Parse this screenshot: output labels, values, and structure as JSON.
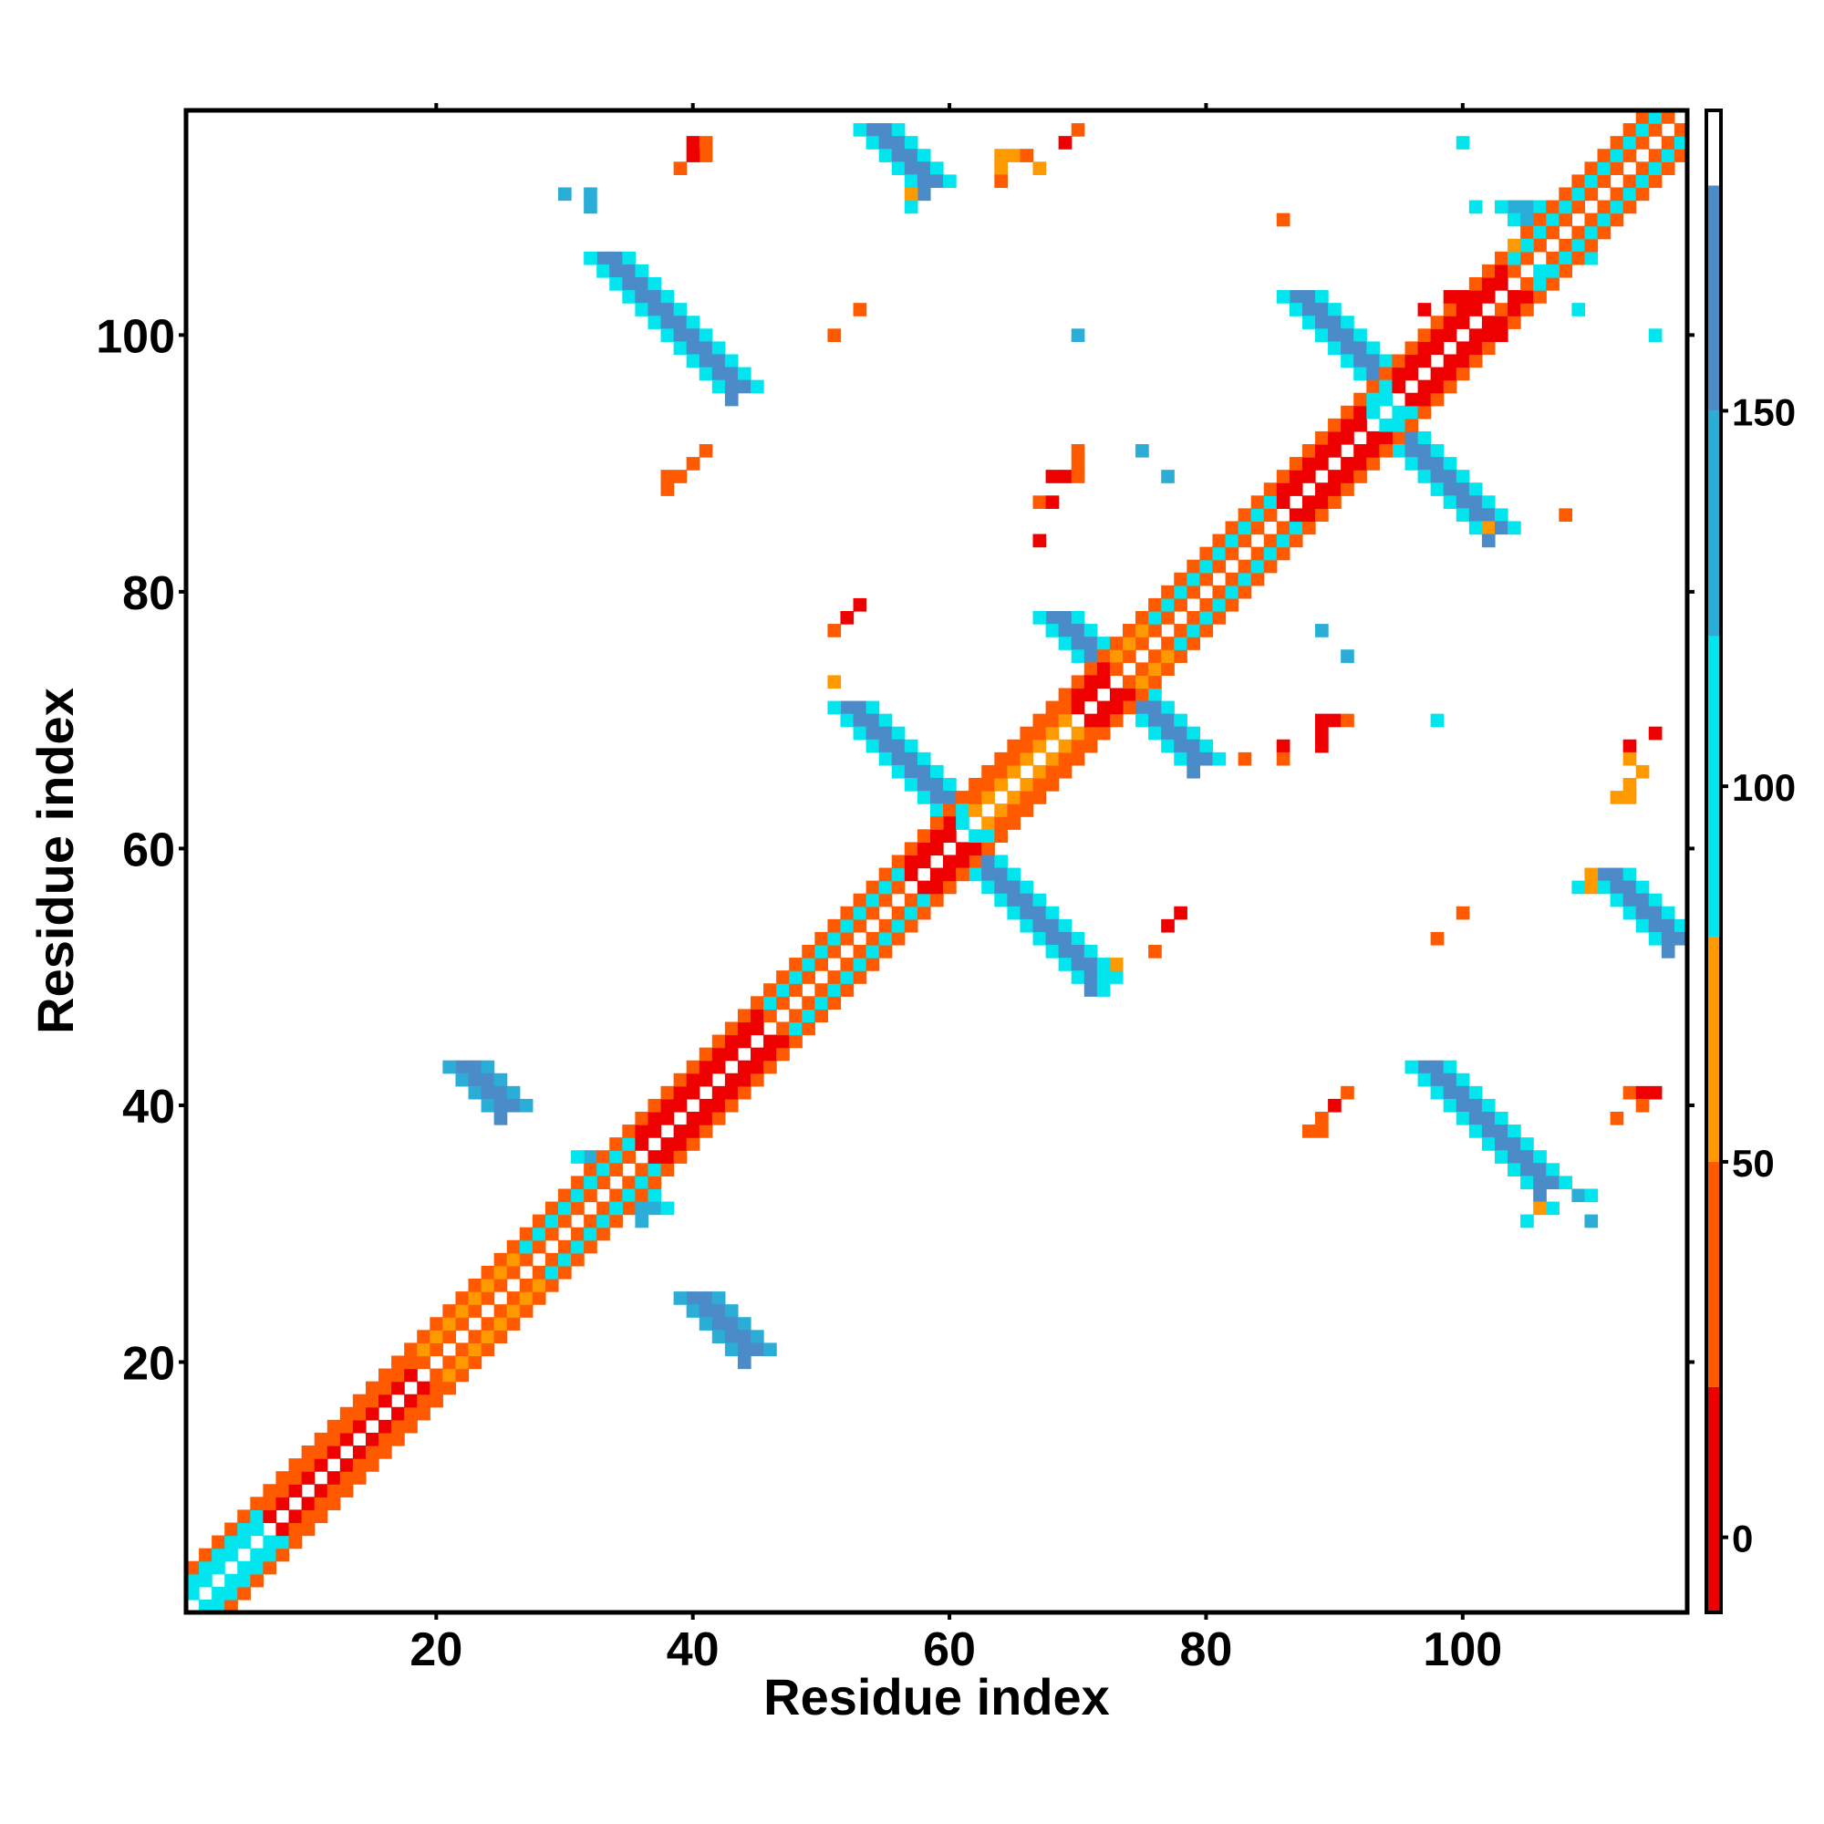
{
  "chart_data": {
    "type": "heatmap",
    "title": "",
    "xlabel": "Residue index",
    "ylabel": "Residue index",
    "xlim": [
      0.5,
      117.5
    ],
    "ylim": [
      0.5,
      117.5
    ],
    "x_ticks": [
      20,
      40,
      60,
      80,
      100
    ],
    "x_tick_labels": [
      "20",
      "40",
      "60",
      "80",
      "100"
    ],
    "y_ticks": [
      20,
      40,
      60,
      80,
      100
    ],
    "y_tick_labels": [
      "20",
      "40",
      "60",
      "80",
      "100"
    ],
    "colorbar": {
      "range": [
        -10,
        190
      ],
      "ticks": [
        0,
        50,
        100,
        150
      ],
      "tick_labels": [
        "0",
        "50",
        "100",
        "150"
      ],
      "bands": [
        {
          "from": -10,
          "to": 20,
          "color": "#ee0000"
        },
        {
          "from": 20,
          "to": 50,
          "color": "#ff5a00"
        },
        {
          "from": 50,
          "to": 80,
          "color": "#ff9900"
        },
        {
          "from": 80,
          "to": 120,
          "color": "#00e5ee"
        },
        {
          "from": 120,
          "to": 150,
          "color": "#2aaed8"
        },
        {
          "from": 150,
          "to": 180,
          "color": "#4a8bc8"
        },
        {
          "from": 180,
          "to": 190,
          "color": "#ffffff"
        }
      ]
    },
    "cell_value_legend": {
      "r": 5,
      "o": 35,
      "a": 65,
      "c": 100,
      "b": 135,
      "d": 165
    },
    "diagonal_segments": [
      {
        "from": 1,
        "to": 6,
        "pattern": "cc"
      },
      {
        "from": 7,
        "to": 18,
        "pattern": "ro"
      },
      {
        "from": 19,
        "to": 26,
        "pattern": "oa"
      },
      {
        "from": 27,
        "to": 35,
        "pattern": "oc"
      },
      {
        "from": 36,
        "to": 45,
        "pattern": "rr"
      },
      {
        "from": 46,
        "to": 56,
        "pattern": "oc"
      },
      {
        "from": 57,
        "to": 60,
        "pattern": "rr"
      },
      {
        "from": 61,
        "to": 61,
        "pattern": "cc"
      },
      {
        "from": 62,
        "to": 69,
        "pattern": "ao"
      },
      {
        "from": 70,
        "to": 72,
        "pattern": "rr"
      },
      {
        "from": 73,
        "to": 75,
        "pattern": "oa"
      },
      {
        "from": 76,
        "to": 85,
        "pattern": "oc"
      },
      {
        "from": 86,
        "to": 92,
        "pattern": "rr"
      },
      {
        "from": 93,
        "to": 94,
        "pattern": "cc"
      },
      {
        "from": 95,
        "to": 103,
        "pattern": "rr"
      },
      {
        "from": 104,
        "to": 117,
        "pattern": "oc"
      }
    ],
    "strands": [
      {
        "x1": 1,
        "y1": 1,
        "x2": 1,
        "y2": 1,
        "w": 1,
        "fill": "c",
        "edge": "c"
      },
      {
        "x1": 22,
        "y1": 43,
        "x2": 25,
        "y2": 40,
        "w": 2,
        "fill": "d",
        "edge": "b"
      },
      {
        "x1": 40,
        "y1": 25,
        "x2": 43,
        "y2": 21,
        "w": 2,
        "fill": "d",
        "edge": "b"
      },
      {
        "x1": 32,
        "y1": 36,
        "x2": 36,
        "y2": 32,
        "w": 2,
        "fill": "b",
        "edge": "c"
      },
      {
        "x1": 33,
        "y1": 106,
        "x2": 43,
        "y2": 96,
        "w": 2,
        "fill": "d",
        "edge": "c"
      },
      {
        "x1": 54,
        "y1": 116,
        "x2": 57,
        "y2": 112,
        "w": 2,
        "fill": "d",
        "edge": "c"
      },
      {
        "x1": 52,
        "y1": 71,
        "x2": 59,
        "y2": 63,
        "w": 2,
        "fill": "d",
        "edge": "c"
      },
      {
        "x1": 62,
        "y1": 59,
        "x2": 71,
        "y2": 51,
        "w": 2,
        "fill": "d",
        "edge": "c"
      },
      {
        "x1": 68,
        "y1": 78,
        "x2": 72,
        "y2": 75,
        "w": 2,
        "fill": "d",
        "edge": "c"
      },
      {
        "x1": 74,
        "y1": 72,
        "x2": 78,
        "y2": 67,
        "w": 2,
        "fill": "d",
        "edge": "c"
      },
      {
        "x1": 87,
        "y1": 103,
        "x2": 92,
        "y2": 97,
        "w": 2,
        "fill": "d",
        "edge": "c"
      },
      {
        "x1": 95,
        "y1": 92,
        "x2": 102,
        "y2": 86,
        "w": 2,
        "fill": "d",
        "edge": "c"
      },
      {
        "x1": 97,
        "y1": 43,
        "x2": 104,
        "y2": 34,
        "w": 2,
        "fill": "d",
        "edge": "c"
      },
      {
        "x1": 111,
        "y1": 58,
        "x2": 116,
        "y2": 53,
        "w": 2,
        "fill": "d",
        "edge": "c"
      },
      {
        "x1": 104,
        "y1": 110,
        "x2": 108,
        "y2": 106,
        "w": 2,
        "fill": "b",
        "edge": "c"
      }
    ],
    "cells": [
      [
        40,
        115,
        "r"
      ],
      [
        41,
        115,
        "o"
      ],
      [
        41,
        114,
        "o"
      ],
      [
        40,
        114,
        "r"
      ],
      [
        39,
        113,
        "o"
      ],
      [
        32,
        111,
        "b"
      ],
      [
        30,
        111,
        "b"
      ],
      [
        32,
        110,
        "b"
      ],
      [
        57,
        110,
        "c"
      ],
      [
        57,
        111,
        "a"
      ],
      [
        64,
        114,
        "a"
      ],
      [
        65,
        114,
        "a"
      ],
      [
        66,
        114,
        "o"
      ],
      [
        67,
        113,
        "a"
      ],
      [
        64,
        113,
        "a"
      ],
      [
        64,
        112,
        "o"
      ],
      [
        69,
        115,
        "r"
      ],
      [
        70,
        116,
        "o"
      ],
      [
        53,
        102,
        "o"
      ],
      [
        51,
        100,
        "o"
      ],
      [
        70,
        100,
        "b"
      ],
      [
        41,
        91,
        "o"
      ],
      [
        40,
        90,
        "o"
      ],
      [
        39,
        89,
        "o"
      ],
      [
        38,
        89,
        "o"
      ],
      [
        38,
        88,
        "o"
      ],
      [
        70,
        91,
        "o"
      ],
      [
        70,
        90,
        "o"
      ],
      [
        68,
        89,
        "r"
      ],
      [
        69,
        89,
        "r"
      ],
      [
        70,
        89,
        "o"
      ],
      [
        67,
        87,
        "o"
      ],
      [
        68,
        87,
        "r"
      ],
      [
        67,
        84,
        "r"
      ],
      [
        75,
        91,
        "b"
      ],
      [
        77,
        89,
        "b"
      ],
      [
        53,
        79,
        "r"
      ],
      [
        52,
        78,
        "r"
      ],
      [
        51,
        77,
        "o"
      ],
      [
        51,
        73,
        "a"
      ],
      [
        89,
        77,
        "b"
      ],
      [
        91,
        75,
        "b"
      ],
      [
        89,
        70,
        "r"
      ],
      [
        90,
        70,
        "r"
      ],
      [
        91,
        70,
        "o"
      ],
      [
        89,
        69,
        "r"
      ],
      [
        89,
        68,
        "r"
      ],
      [
        86,
        68,
        "r"
      ],
      [
        86,
        67,
        "o"
      ],
      [
        83,
        67,
        "o"
      ],
      [
        81,
        67,
        "c"
      ],
      [
        98,
        70,
        "c"
      ],
      [
        115,
        69,
        "r"
      ],
      [
        113,
        68,
        "r"
      ],
      [
        113,
        67,
        "a"
      ],
      [
        114,
        66,
        "a"
      ],
      [
        113,
        65,
        "a"
      ],
      [
        112,
        64,
        "a"
      ],
      [
        113,
        64,
        "a"
      ],
      [
        110,
        58,
        "a"
      ],
      [
        109,
        57,
        "c"
      ],
      [
        110,
        57,
        "a"
      ],
      [
        78,
        55,
        "r"
      ],
      [
        77,
        54,
        "r"
      ],
      [
        76,
        52,
        "o"
      ],
      [
        73,
        51,
        "a"
      ],
      [
        72,
        49,
        "c"
      ],
      [
        72,
        50,
        "c"
      ],
      [
        100,
        55,
        "o"
      ],
      [
        98,
        53,
        "o"
      ],
      [
        91,
        41,
        "o"
      ],
      [
        90,
        40,
        "r"
      ],
      [
        89,
        39,
        "o"
      ],
      [
        89,
        38,
        "o"
      ],
      [
        88,
        38,
        "o"
      ],
      [
        113,
        41,
        "o"
      ],
      [
        114,
        41,
        "r"
      ],
      [
        115,
        41,
        "r"
      ],
      [
        114,
        40,
        "o"
      ],
      [
        112,
        39,
        "o"
      ],
      [
        109,
        33,
        "b"
      ],
      [
        110,
        33,
        "c"
      ],
      [
        110,
        31,
        "b"
      ],
      [
        105,
        31,
        "c"
      ],
      [
        107,
        32,
        "c"
      ],
      [
        106,
        32,
        "a"
      ],
      [
        101,
        85,
        "c"
      ],
      [
        102,
        85,
        "a"
      ],
      [
        108,
        86,
        "o"
      ],
      [
        86,
        109,
        "o"
      ],
      [
        101,
        110,
        "c"
      ],
      [
        100,
        115,
        "c"
      ],
      [
        109,
        102,
        "c"
      ],
      [
        115,
        100,
        "c"
      ],
      [
        104,
        107,
        "a"
      ],
      [
        105,
        106,
        "o"
      ],
      [
        106,
        105,
        "c"
      ],
      [
        103,
        102,
        "o"
      ],
      [
        102,
        102,
        "a"
      ],
      [
        99,
        103,
        "r"
      ],
      [
        100,
        103,
        "r"
      ],
      [
        101,
        102,
        "r"
      ],
      [
        102,
        100,
        "r"
      ],
      [
        103,
        100,
        "r"
      ],
      [
        97,
        102,
        "r"
      ]
    ]
  }
}
